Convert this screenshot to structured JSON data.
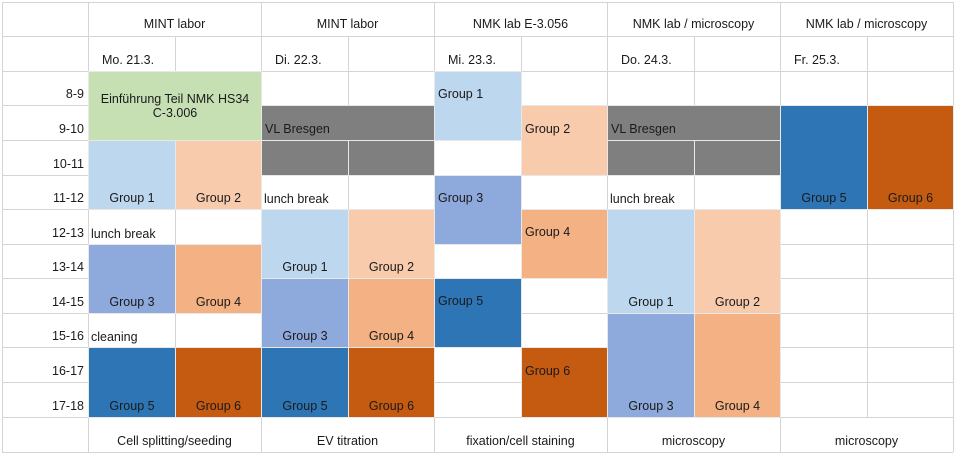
{
  "times": [
    "8-9",
    "9-10",
    "10-11",
    "11-12",
    "12-13",
    "13-14",
    "14-15",
    "15-16",
    "16-17",
    "17-18"
  ],
  "days": [
    {
      "venue": "MINT labor",
      "date": "Mo. 21.3.",
      "activity": "Cell splitting/seeding",
      "entries": [
        "Einführung Teil NMK HS34 C-3.006",
        "Group 1",
        "Group 2",
        "lunch break",
        "Group 3",
        "Group 4",
        "cleaning",
        "Group 5",
        "Group 6"
      ]
    },
    {
      "venue": "MINT labor",
      "date": "Di. 22.3.",
      "activity": "EV titration",
      "entries": [
        "VL Bresgen",
        "lunch break",
        "Group 1",
        "Group 2",
        "Group 3",
        "Group 4",
        "Group 5",
        "Group 6"
      ]
    },
    {
      "venue": "NMK lab E-3.056",
      "date": "Mi. 23.3.",
      "activity": "fixation/cell staining",
      "entries": [
        "Group 1",
        "Group 2",
        "Group 3",
        "Group 4",
        "Group 5",
        "Group 6"
      ]
    },
    {
      "venue": "NMK lab / microscopy",
      "date": "Do. 24.3.",
      "activity": "microscopy",
      "entries": [
        "VL Bresgen",
        "lunch break",
        "Group 1",
        "Group 2",
        "Group 3",
        "Group 4"
      ]
    },
    {
      "venue": "NMK lab / microscopy",
      "date": "Fr. 25.3.",
      "activity": "microscopy",
      "entries": [
        "Group 5",
        "Group 6"
      ]
    }
  ]
}
